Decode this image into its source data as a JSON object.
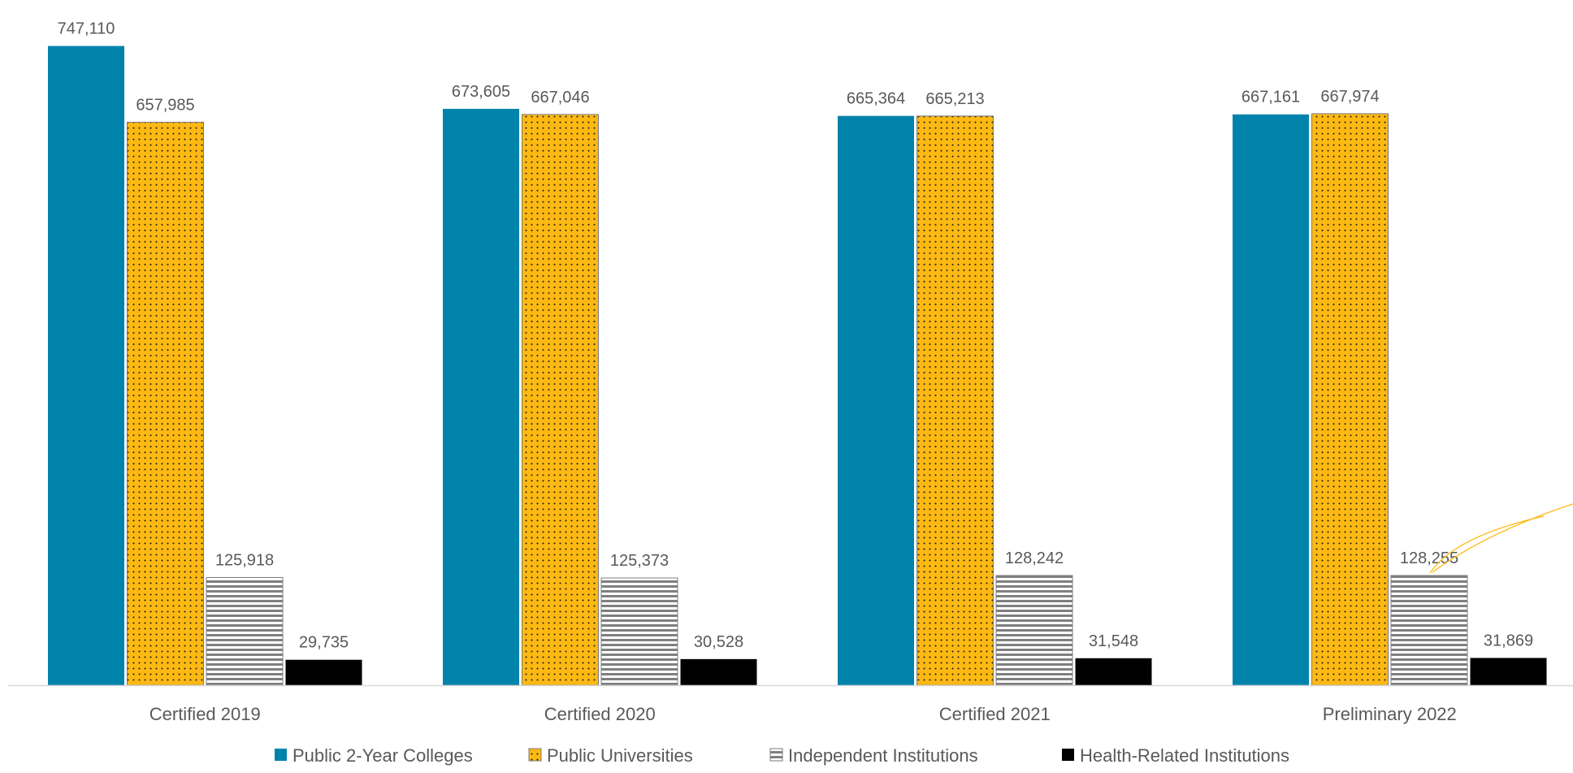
{
  "chart_data": {
    "type": "bar",
    "categories": [
      "Certified 2019",
      "Certified 2020",
      "Certified 2021",
      "Preliminary 2022"
    ],
    "series": [
      {
        "name": "Public 2-Year Colleges",
        "values": [
          747110,
          673605,
          665364,
          667161
        ],
        "labels": [
          "747,110",
          "673,605",
          "665,364",
          "667,161"
        ],
        "color": "#0083AB",
        "pattern": "solid"
      },
      {
        "name": "Public Universities",
        "values": [
          657985,
          667046,
          665213,
          667974
        ],
        "labels": [
          "657,985",
          "667,046",
          "665,213",
          "667,974"
        ],
        "color": "#FDB913",
        "pattern": "dots"
      },
      {
        "name": "Independent Institutions",
        "values": [
          125918,
          125373,
          128242,
          128255
        ],
        "labels": [
          "125,918",
          "125,373",
          "128,242",
          "128,255"
        ],
        "color": "#7F7F7F",
        "pattern": "horizontal-lines"
      },
      {
        "name": "Health-Related Institutions",
        "values": [
          29735,
          30528,
          31548,
          31869
        ],
        "labels": [
          "29,735",
          "30,528",
          "31,548",
          "31,869"
        ],
        "color": "#000000",
        "pattern": "solid"
      }
    ],
    "title": "",
    "xlabel": "",
    "ylabel": "",
    "ylim": [
      0,
      760000
    ],
    "grid": false,
    "legend": "bottom",
    "data_labels": true,
    "label_color": "#595959",
    "axis_color": "#D9D9D9",
    "decoration_color": "#FDB913"
  }
}
